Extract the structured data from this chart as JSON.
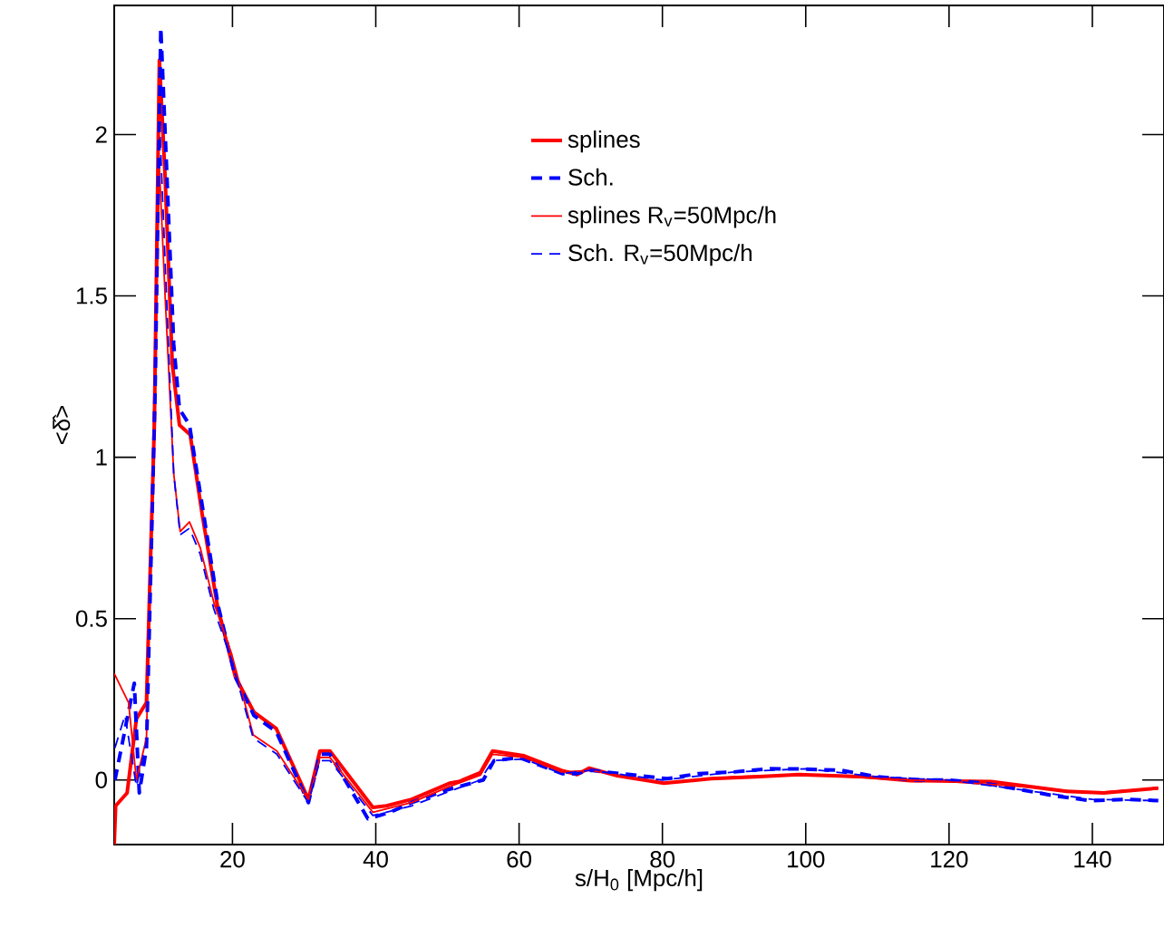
{
  "chart_data": {
    "type": "line",
    "xlabel": "s/H$_{0}$ [Mpc/h]",
    "ylabel": "<δ̂>",
    "xlim": [
      3.5,
      150
    ],
    "ylim": [
      -0.2,
      2.4
    ],
    "xticks": [
      20,
      40,
      60,
      80,
      100,
      120,
      140
    ],
    "yticks": [
      0,
      0.5,
      1,
      1.5,
      2
    ],
    "legend": "top right",
    "marker": "none",
    "series": [
      {
        "name": "splines",
        "color": "#ff0000",
        "line_style": "solid",
        "x": [
          3.5,
          3.7,
          5.3,
          6.6,
          8.0,
          9.1,
          9.8,
          10.6,
          11.6,
          12.6,
          14.1,
          15.8,
          17.9,
          20.4,
          23.0,
          26.1,
          30.6,
          32.2,
          33.6,
          39.6,
          41.5,
          45.0,
          50.3,
          51.6,
          54.6,
          56.3,
          60.7,
          65.9,
          68.1,
          69.8,
          73.7,
          80.2,
          86.8,
          92.9,
          99.0,
          108.5,
          114.6,
          125.9,
          136.4,
          141.6,
          149.2
        ],
        "values": [
          -0.2,
          -0.08,
          -0.04,
          0.19,
          0.24,
          1.1,
          2.23,
          1.87,
          1.29,
          1.1,
          1.07,
          0.82,
          0.54,
          0.32,
          0.21,
          0.16,
          -0.06,
          0.09,
          0.09,
          -0.085,
          -0.08,
          -0.06,
          -0.01,
          -0.005,
          0.023,
          0.09,
          0.075,
          0.03,
          0.017,
          0.037,
          0.013,
          -0.01,
          0.004,
          0.01,
          0.017,
          0.01,
          -0.002,
          -0.005,
          -0.035,
          -0.04,
          -0.025
        ]
      },
      {
        "name": "Sch.",
        "color": "#0000ff",
        "line_style": "dashed",
        "x": [
          3.6,
          4.5,
          6.3,
          7.0,
          8.0,
          9.2,
          10.0,
          10.8,
          11.8,
          12.6,
          14.0,
          16.0,
          18.0,
          20.4,
          23.0,
          26.1,
          30.6,
          32.2,
          33.6,
          38.9,
          42.0,
          45.0,
          50.0,
          55.0,
          56.5,
          60.0,
          66.0,
          68.0,
          70.0,
          80.7,
          85.0,
          90.0,
          95.0,
          99.8,
          105.0,
          110.0,
          115.0,
          120.0,
          125.0,
          130.0,
          135.0,
          139.8,
          145.0,
          149.2
        ],
        "values": [
          0.0,
          0.1,
          0.3,
          -0.04,
          0.1,
          1.2,
          2.33,
          1.9,
          1.35,
          1.15,
          1.1,
          0.82,
          0.54,
          0.32,
          0.2,
          0.15,
          -0.07,
          0.08,
          0.08,
          -0.12,
          -0.1,
          -0.07,
          -0.03,
          0.0,
          0.06,
          0.07,
          0.02,
          0.02,
          0.03,
          0.004,
          0.02,
          0.025,
          0.035,
          0.034,
          0.03,
          0.01,
          0.0,
          0.0,
          -0.01,
          -0.03,
          -0.05,
          -0.064,
          -0.06,
          -0.064
        ]
      },
      {
        "name": "splines R$_{v}$=50Mpc/h",
        "color": "#ff0000",
        "line_style": "solid",
        "x": [
          3.5,
          5.5,
          6.6,
          8.0,
          9.0,
          9.8,
          10.6,
          11.8,
          12.7,
          14.0,
          15.5,
          17.4,
          19.9,
          22.9,
          26.2,
          30.6,
          32.2,
          33.6,
          39.6,
          45.0,
          50.3,
          54.6,
          56.3,
          60.7,
          65.9,
          70.0,
          80.0,
          90.0,
          100.0,
          110.0,
          120.0,
          130.0,
          140.0,
          149.2
        ],
        "values": [
          0.33,
          0.24,
          0.0,
          0.13,
          1.1,
          1.9,
          1.5,
          0.95,
          0.77,
          0.8,
          0.72,
          0.55,
          0.39,
          0.14,
          0.09,
          -0.06,
          0.07,
          0.07,
          -0.1,
          -0.07,
          -0.02,
          0.015,
          0.08,
          0.07,
          0.025,
          0.03,
          -0.01,
          0.01,
          0.017,
          0.005,
          -0.005,
          -0.02,
          -0.04,
          -0.025
        ]
      },
      {
        "name": "Sch. R$_{v}$=50Mpc/h",
        "color": "#0000ff",
        "line_style": "dashed",
        "x": [
          3.6,
          5.0,
          6.6,
          8.0,
          9.0,
          9.9,
          10.7,
          11.8,
          12.7,
          14.0,
          15.5,
          17.4,
          19.9,
          22.9,
          26.2,
          30.6,
          32.2,
          33.6,
          39.6,
          45.0,
          50.3,
          54.6,
          56.3,
          60.7,
          65.9,
          70.0,
          80.0,
          90.0,
          100.0,
          110.0,
          120.0,
          130.0,
          140.0,
          149.2
        ],
        "values": [
          0.1,
          0.2,
          -0.02,
          0.12,
          1.1,
          2.0,
          1.55,
          0.95,
          0.76,
          0.78,
          0.7,
          0.53,
          0.37,
          0.13,
          0.08,
          -0.07,
          0.06,
          0.06,
          -0.11,
          -0.08,
          -0.035,
          0.0,
          0.06,
          0.065,
          0.02,
          0.03,
          0.0,
          0.025,
          0.035,
          0.01,
          0.0,
          -0.03,
          -0.06,
          -0.064
        ]
      }
    ]
  }
}
